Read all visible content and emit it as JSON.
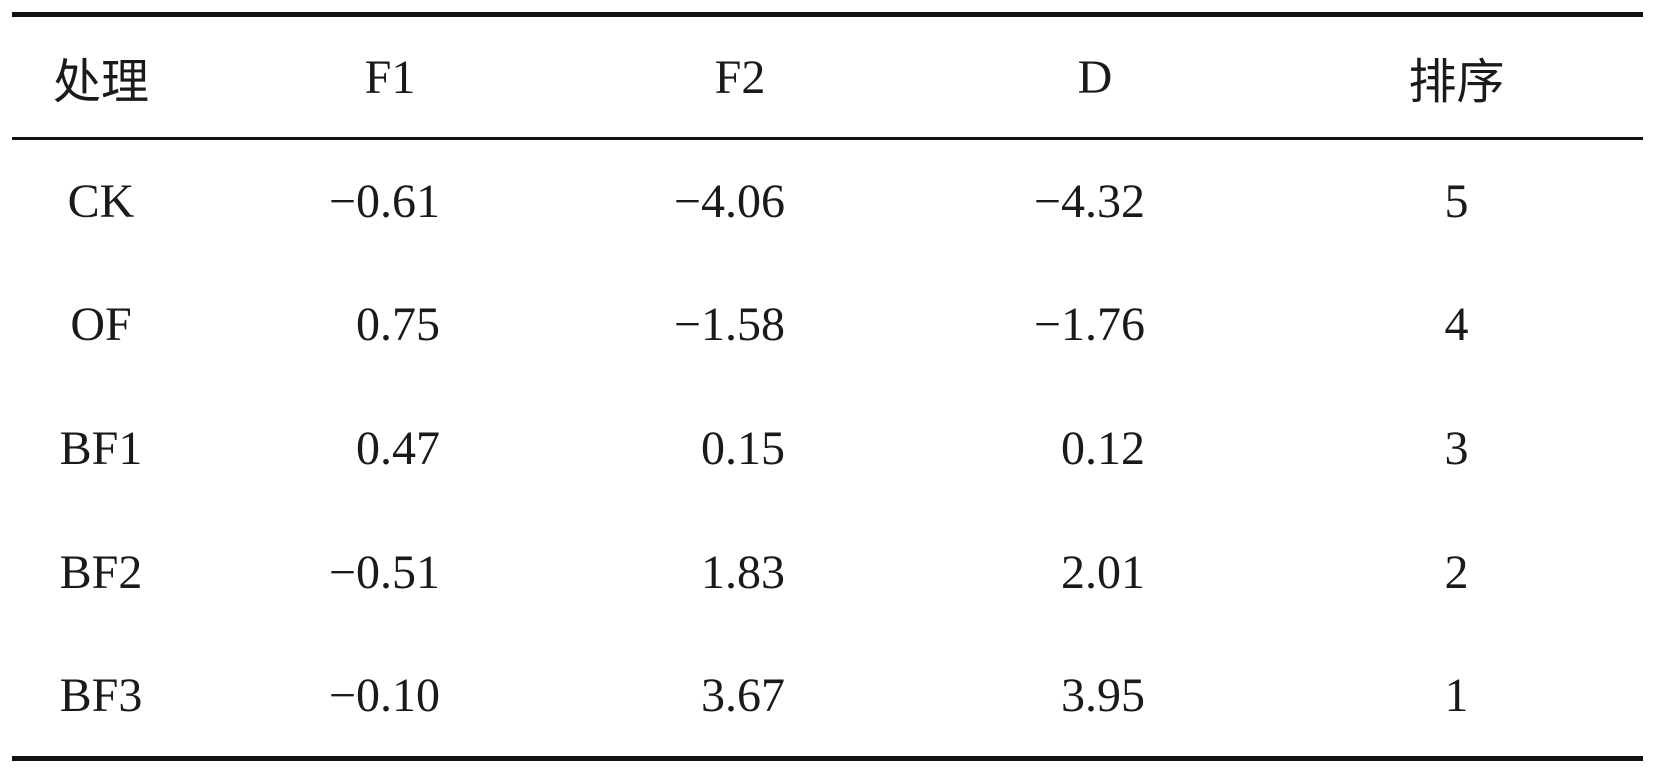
{
  "table": {
    "headers": [
      "处理",
      "F1",
      "F2",
      "D",
      "排序"
    ],
    "rows": [
      {
        "treatment": "CK",
        "f1": "−0.61",
        "f2": "−4.06",
        "d": "−4.32",
        "rank": "5"
      },
      {
        "treatment": "OF",
        "f1": "0.75",
        "f2": "−1.58",
        "d": "−1.76",
        "rank": "4"
      },
      {
        "treatment": "BF1",
        "f1": "0.47",
        "f2": "0.15",
        "d": "0.12",
        "rank": "3"
      },
      {
        "treatment": "BF2",
        "f1": "−0.51",
        "f2": "1.83",
        "d": "2.01",
        "rank": "2"
      },
      {
        "treatment": "BF3",
        "f1": "−0.10",
        "f2": "3.67",
        "d": "3.95",
        "rank": "1"
      }
    ]
  }
}
